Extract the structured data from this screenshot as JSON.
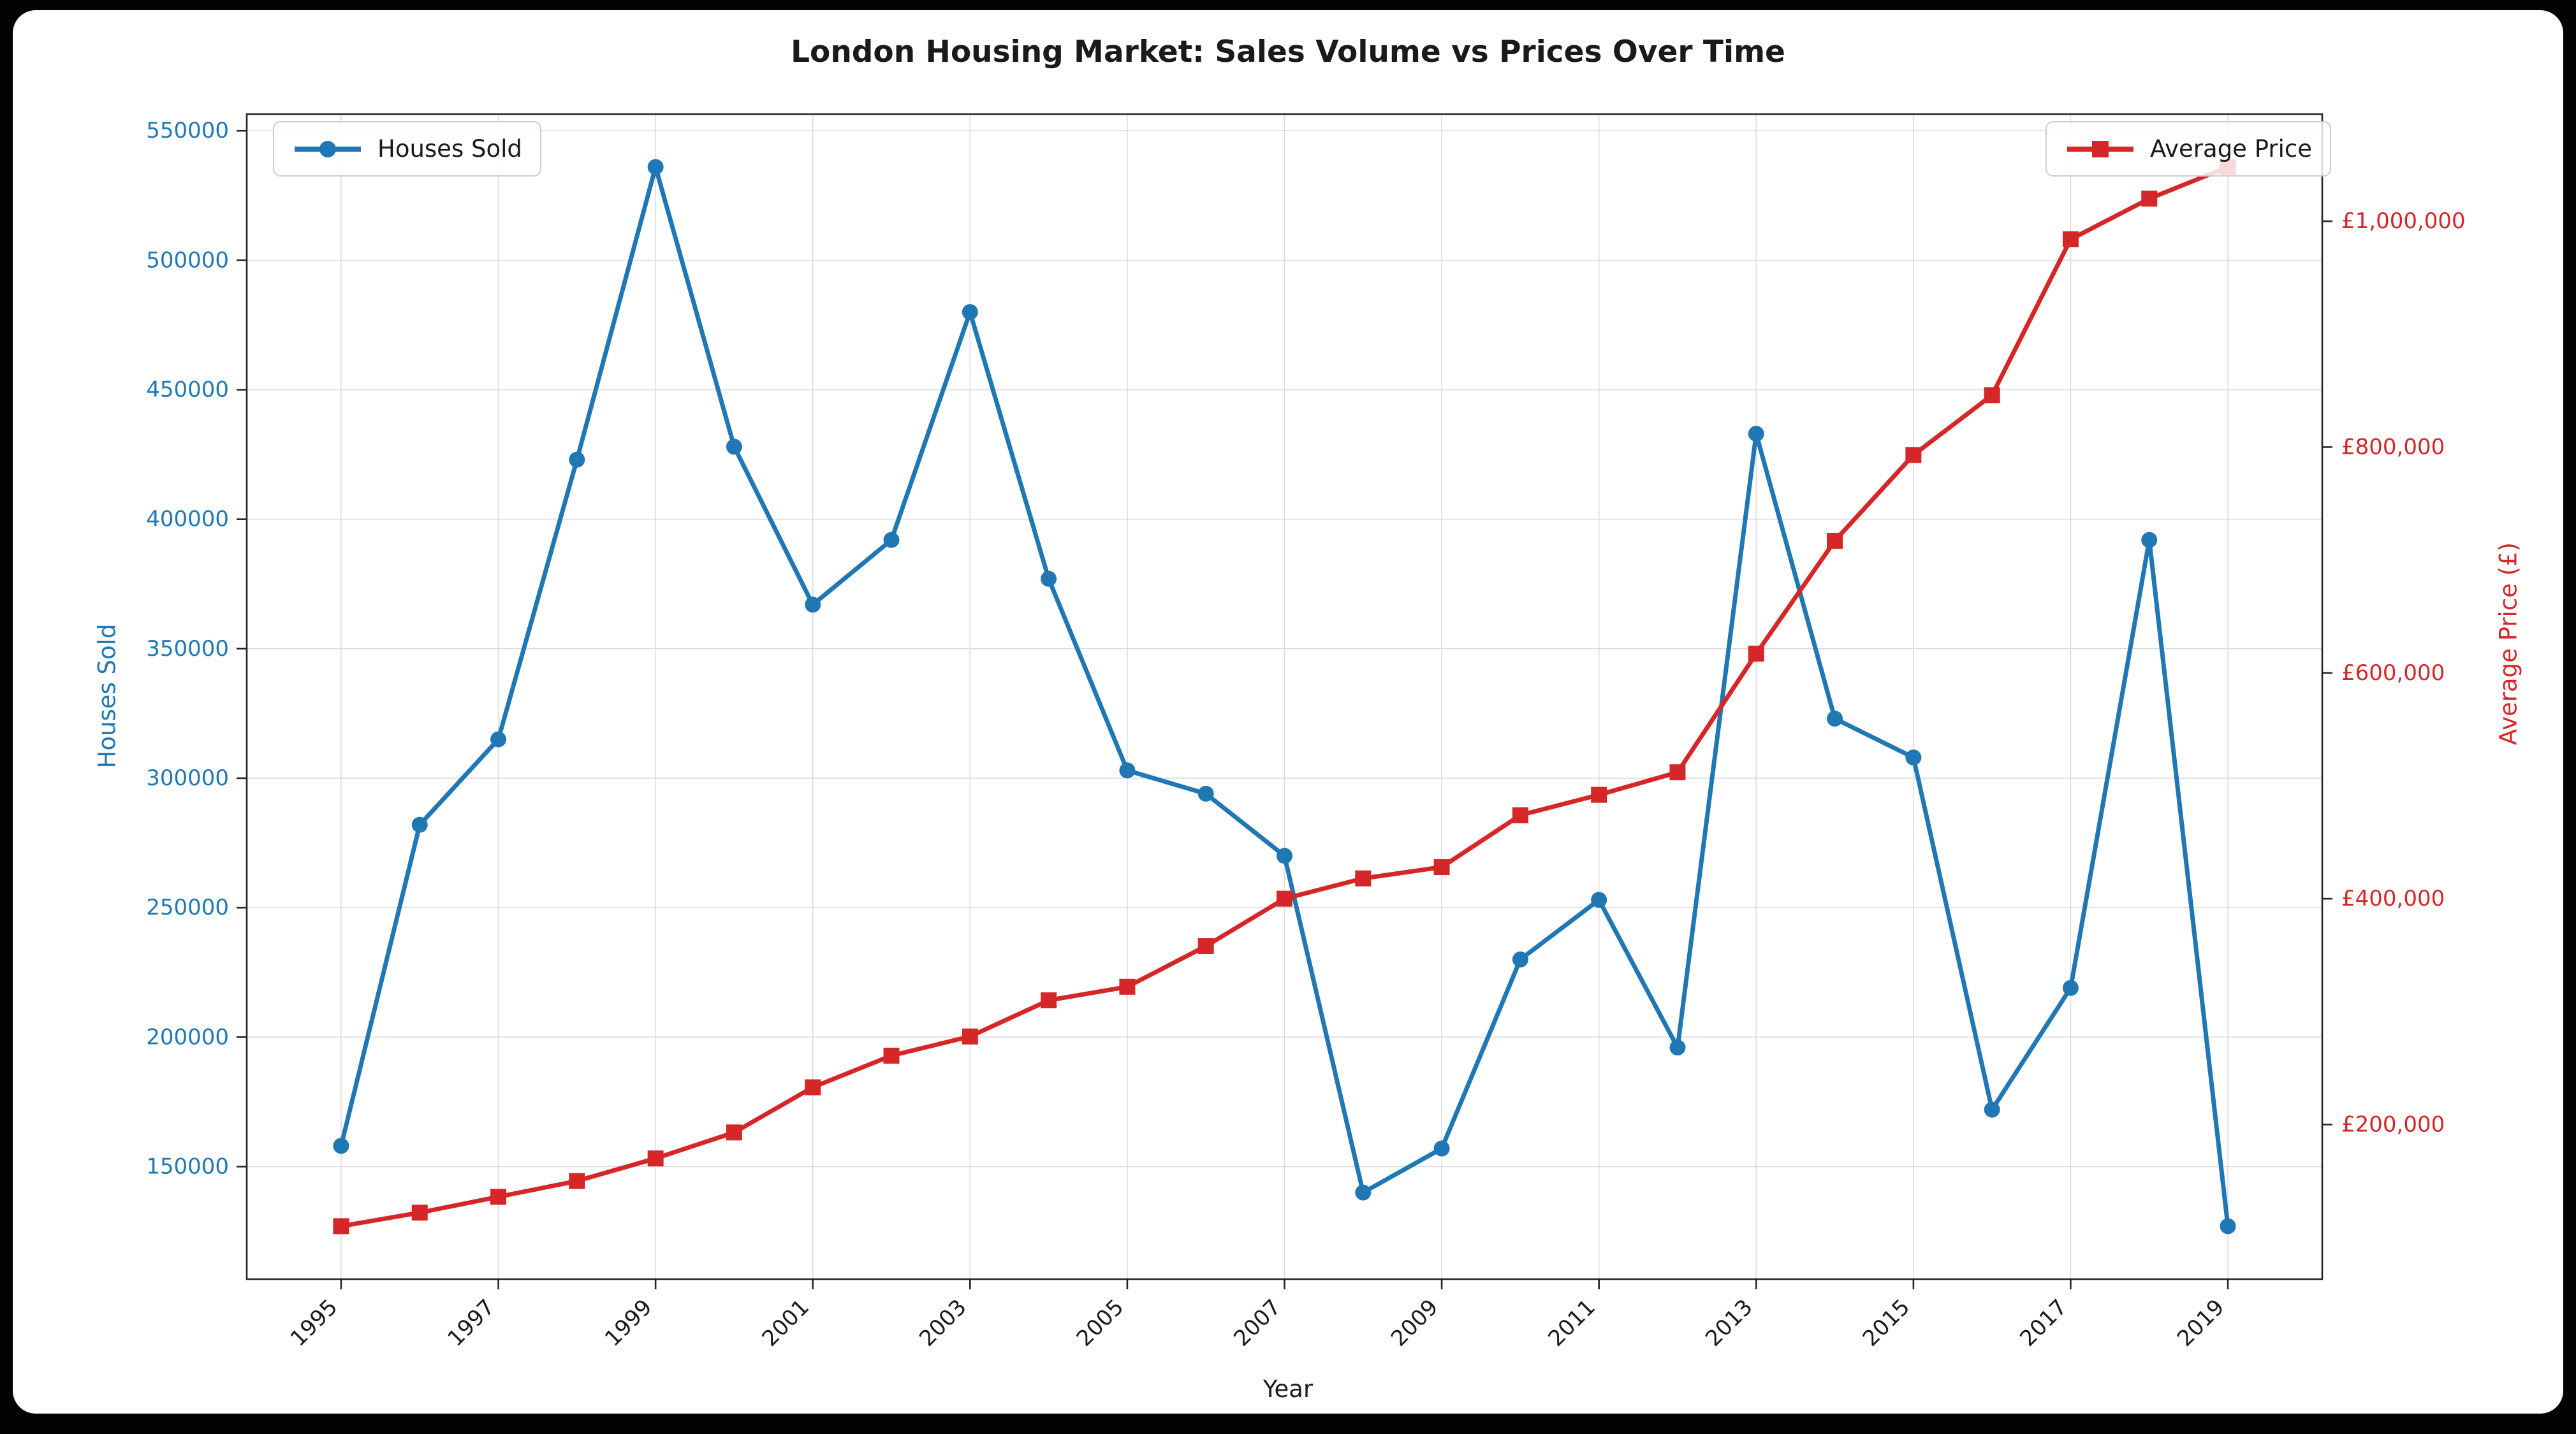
{
  "chart_data": {
    "type": "line",
    "title": "London Housing Market: Sales Volume vs Prices Over Time",
    "xlabel": "Year",
    "ylabel_left": "Houses Sold",
    "ylabel_right": "Average Price (£)",
    "x": [
      1995,
      1996,
      1997,
      1998,
      1999,
      2000,
      2001,
      2002,
      2003,
      2004,
      2005,
      2006,
      2007,
      2008,
      2009,
      2010,
      2011,
      2012,
      2013,
      2014,
      2015,
      2016,
      2017,
      2018,
      2019
    ],
    "series": [
      {
        "name": "Houses Sold",
        "axis": "left",
        "color": "#1f77b4",
        "marker": "circle",
        "values": [
          158000,
          282000,
          315000,
          423000,
          536000,
          428000,
          367000,
          392000,
          480000,
          377000,
          303000,
          294000,
          270000,
          140000,
          157000,
          230000,
          253000,
          196000,
          433000,
          323000,
          308000,
          172000,
          219000,
          392000,
          127000
        ]
      },
      {
        "name": "Average Price",
        "axis": "right",
        "color": "#d62728",
        "marker": "square",
        "values": [
          110000,
          122000,
          136000,
          150000,
          170000,
          193000,
          233000,
          261000,
          278000,
          310000,
          322000,
          358000,
          400000,
          418000,
          428000,
          474000,
          492000,
          512000,
          617000,
          717000,
          793000,
          846000,
          984000,
          1020000,
          1048000
        ]
      }
    ],
    "left_axis": {
      "color": "#1f77b4",
      "ticks": [
        150000,
        200000,
        250000,
        300000,
        350000,
        400000,
        450000,
        500000,
        550000
      ],
      "tick_labels": [
        "150000",
        "200000",
        "250000",
        "300000",
        "350000",
        "400000",
        "450000",
        "500000",
        "550000"
      ],
      "lim": [
        106550,
        556450
      ]
    },
    "right_axis": {
      "color": "#d62728",
      "ticks": [
        200000,
        400000,
        600000,
        800000,
        1000000
      ],
      "tick_labels": [
        "£200,000",
        "£400,000",
        "£600,000",
        "£800,000",
        "£1,000,000"
      ],
      "lim": [
        63100,
        1094900
      ]
    },
    "x_ticks": [
      1995,
      1997,
      1999,
      2001,
      2003,
      2005,
      2007,
      2009,
      2011,
      2013,
      2015,
      2017,
      2019
    ],
    "x_tick_labels": [
      "1995",
      "1997",
      "1999",
      "2001",
      "2003",
      "2005",
      "2007",
      "2009",
      "2011",
      "2013",
      "2015",
      "2017",
      "2019"
    ],
    "xlim": [
      1993.8,
      2020.2
    ],
    "grid": true,
    "grid_color": "#dcdcdc",
    "legend_positions": [
      "upper left",
      "upper right"
    ],
    "text_color": "#1a1a1a"
  }
}
